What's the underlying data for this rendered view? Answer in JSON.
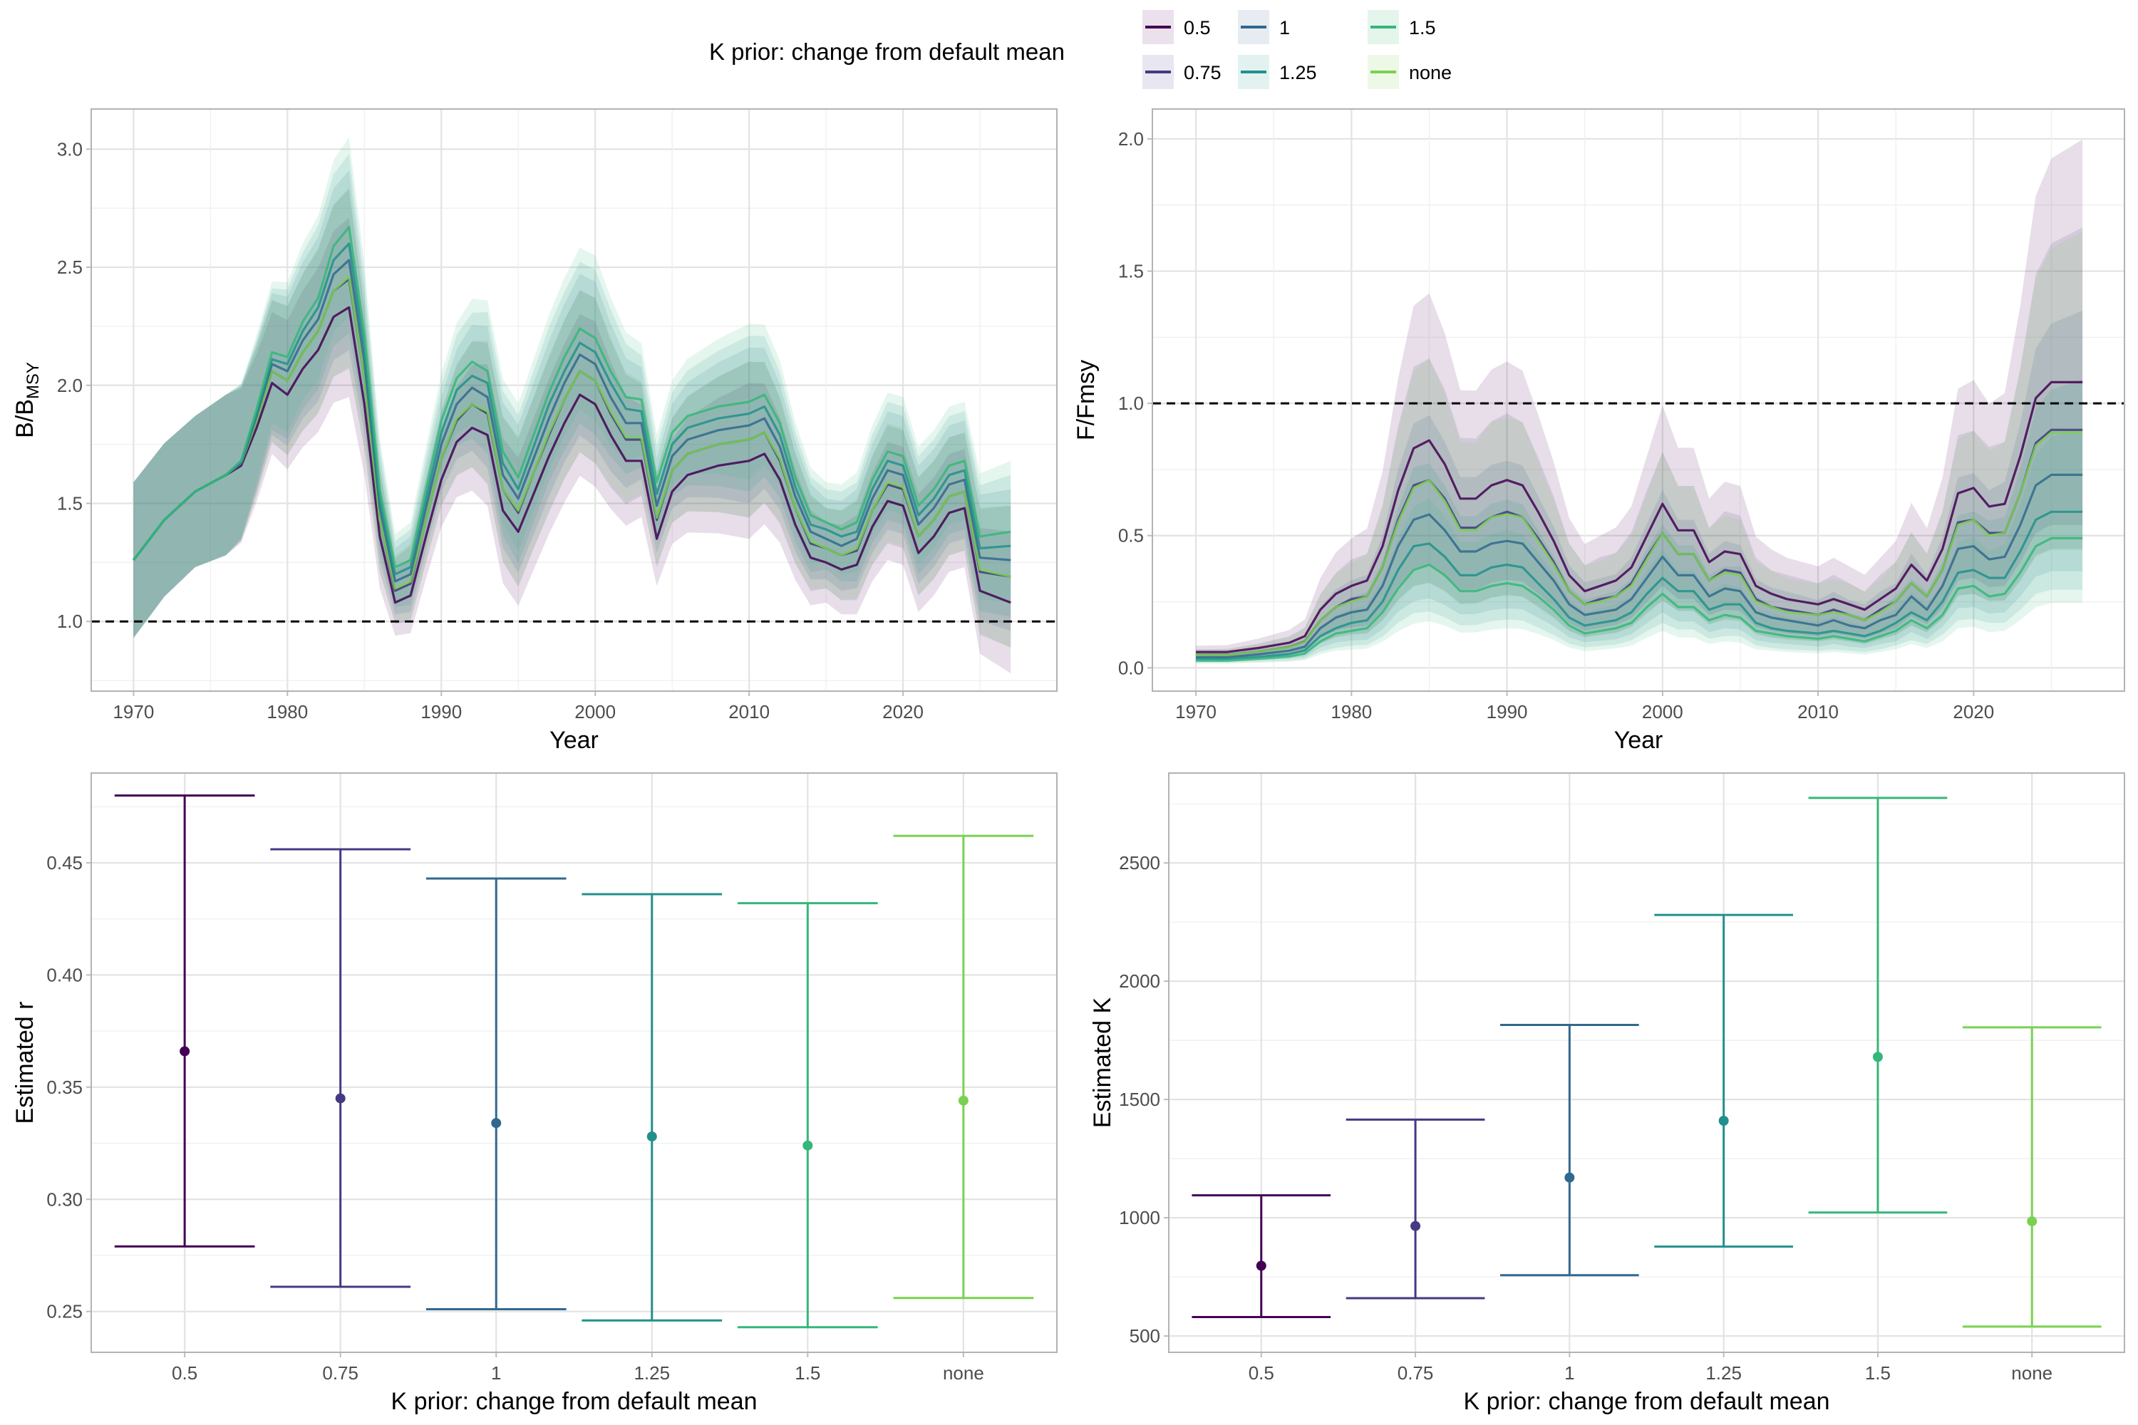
{
  "legend": {
    "title": "K prior: change from default mean",
    "items": [
      {
        "label": "0.5",
        "color": "#440154"
      },
      {
        "label": "0.75",
        "color": "#443A83"
      },
      {
        "label": "1",
        "color": "#31688E"
      },
      {
        "label": "1.25",
        "color": "#21908C"
      },
      {
        "label": "1.5",
        "color": "#35B779"
      },
      {
        "label": "none",
        "color": "#7AD151"
      }
    ]
  },
  "chart_data": [
    {
      "type": "line",
      "xlabel": "Year",
      "ylabel_main": "B/B",
      "ylabel_sub": "MSY",
      "xlim": [
        1967.25,
        2030
      ],
      "ylim": [
        0.705,
        3.17
      ],
      "xticks": [
        1970,
        1980,
        1990,
        2000,
        2010,
        2020
      ],
      "yticks": [
        "1.0",
        "1.5",
        "2.0",
        "2.5",
        "3.0"
      ],
      "reference_line": 1.0,
      "grid": true,
      "x": [
        1970,
        1972,
        1974,
        1976,
        1977,
        1978,
        1979,
        1980,
        1981,
        1982,
        1983,
        1984,
        1985,
        1986,
        1987,
        1988,
        1989,
        1990,
        1991,
        1992,
        1993,
        1994,
        1995,
        1996,
        1997,
        1998,
        1999,
        2000,
        2001,
        2002,
        2003,
        2004,
        2005,
        2006,
        2008,
        2010,
        2011,
        2012,
        2013,
        2014,
        2015,
        2016,
        2017,
        2018,
        2019,
        2020,
        2021,
        2022,
        2023,
        2024,
        2025,
        2027
      ],
      "series": [
        {
          "name": "0.5",
          "values": [
            1.26,
            1.43,
            1.55,
            1.62,
            1.66,
            1.82,
            2.01,
            1.96,
            2.07,
            2.15,
            2.29,
            2.33,
            1.92,
            1.36,
            1.08,
            1.11,
            1.36,
            1.6,
            1.76,
            1.82,
            1.79,
            1.47,
            1.38,
            1.54,
            1.7,
            1.84,
            1.96,
            1.92,
            1.79,
            1.68,
            1.68,
            1.35,
            1.55,
            1.62,
            1.66,
            1.68,
            1.71,
            1.6,
            1.41,
            1.27,
            1.25,
            1.22,
            1.24,
            1.4,
            1.51,
            1.49,
            1.29,
            1.36,
            1.46,
            1.48,
            1.13,
            1.08
          ]
        },
        {
          "name": "0.75",
          "values": [
            1.26,
            1.43,
            1.55,
            1.62,
            1.67,
            1.85,
            2.06,
            2.02,
            2.14,
            2.23,
            2.4,
            2.45,
            2.03,
            1.43,
            1.13,
            1.16,
            1.43,
            1.69,
            1.85,
            1.92,
            1.88,
            1.56,
            1.46,
            1.63,
            1.79,
            1.94,
            2.06,
            2.02,
            1.88,
            1.77,
            1.77,
            1.43,
            1.64,
            1.71,
            1.75,
            1.77,
            1.8,
            1.68,
            1.48,
            1.33,
            1.31,
            1.28,
            1.3,
            1.47,
            1.58,
            1.56,
            1.36,
            1.43,
            1.53,
            1.55,
            1.21,
            1.19
          ]
        },
        {
          "name": "1",
          "values": [
            1.26,
            1.43,
            1.55,
            1.62,
            1.67,
            1.87,
            2.09,
            2.06,
            2.19,
            2.28,
            2.47,
            2.53,
            2.1,
            1.48,
            1.17,
            1.2,
            1.48,
            1.75,
            1.92,
            1.99,
            1.95,
            1.62,
            1.52,
            1.69,
            1.86,
            2.01,
            2.13,
            2.09,
            1.95,
            1.84,
            1.84,
            1.49,
            1.7,
            1.77,
            1.81,
            1.83,
            1.86,
            1.74,
            1.53,
            1.38,
            1.35,
            1.32,
            1.35,
            1.52,
            1.64,
            1.62,
            1.41,
            1.48,
            1.58,
            1.6,
            1.27,
            1.26
          ]
        },
        {
          "name": "1.25",
          "values": [
            1.26,
            1.43,
            1.55,
            1.62,
            1.68,
            1.88,
            2.11,
            2.09,
            2.23,
            2.33,
            2.53,
            2.6,
            2.16,
            1.52,
            1.2,
            1.23,
            1.52,
            1.8,
            1.98,
            2.04,
            2.01,
            1.67,
            1.56,
            1.74,
            1.92,
            2.06,
            2.18,
            2.14,
            2.01,
            1.9,
            1.89,
            1.54,
            1.75,
            1.82,
            1.86,
            1.88,
            1.91,
            1.79,
            1.57,
            1.41,
            1.39,
            1.36,
            1.38,
            1.56,
            1.68,
            1.66,
            1.45,
            1.52,
            1.62,
            1.64,
            1.31,
            1.32
          ]
        },
        {
          "name": "1.5",
          "values": [
            1.26,
            1.43,
            1.55,
            1.62,
            1.68,
            1.9,
            2.14,
            2.12,
            2.27,
            2.37,
            2.59,
            2.67,
            2.22,
            1.56,
            1.23,
            1.26,
            1.56,
            1.85,
            2.03,
            2.1,
            2.06,
            1.72,
            1.61,
            1.79,
            1.97,
            2.12,
            2.24,
            2.2,
            2.06,
            1.95,
            1.94,
            1.59,
            1.8,
            1.87,
            1.91,
            1.93,
            1.96,
            1.84,
            1.61,
            1.45,
            1.42,
            1.39,
            1.42,
            1.6,
            1.72,
            1.7,
            1.49,
            1.56,
            1.66,
            1.68,
            1.36,
            1.38
          ]
        },
        {
          "name": "none",
          "values": [
            1.26,
            1.43,
            1.55,
            1.62,
            1.67,
            1.85,
            2.06,
            2.02,
            2.14,
            2.23,
            2.4,
            2.46,
            2.03,
            1.43,
            1.14,
            1.17,
            1.43,
            1.69,
            1.86,
            1.92,
            1.89,
            1.56,
            1.47,
            1.63,
            1.8,
            1.94,
            2.06,
            2.02,
            1.89,
            1.78,
            1.78,
            1.44,
            1.64,
            1.71,
            1.75,
            1.77,
            1.8,
            1.69,
            1.48,
            1.34,
            1.31,
            1.28,
            1.31,
            1.47,
            1.59,
            1.57,
            1.36,
            1.43,
            1.53,
            1.55,
            1.22,
            1.19
          ]
        }
      ],
      "interval_halfwidth": {
        "years": [
          1970,
          1974,
          1976,
          1979,
          1984,
          1987,
          1990,
          1993,
          2000,
          2004,
          2010,
          2015,
          2019,
          2024,
          2027
        ],
        "values": [
          0.33,
          0.32,
          0.34,
          0.3,
          0.38,
          0.14,
          0.2,
          0.3,
          0.35,
          0.2,
          0.33,
          0.17,
          0.25,
          0.25,
          0.3
        ]
      }
    },
    {
      "type": "line",
      "xlabel": "Year",
      "ylabel": "F/Fmsy",
      "xlim": [
        1967.2,
        2029.7
      ],
      "ylim": [
        -0.088,
        2.113
      ],
      "xticks": [
        1970,
        1980,
        1990,
        2000,
        2010,
        2020
      ],
      "yticks": [
        "0.0",
        "0.5",
        "1.0",
        "1.5",
        "2.0"
      ],
      "reference_line": 1.0,
      "grid": true,
      "x": [
        1970,
        1972,
        1974,
        1976,
        1977,
        1978,
        1979,
        1980,
        1981,
        1982,
        1983,
        1984,
        1985,
        1986,
        1987,
        1988,
        1989,
        1990,
        1991,
        1992,
        1993,
        1994,
        1995,
        1996,
        1997,
        1998,
        1999,
        2000,
        2001,
        2002,
        2003,
        2004,
        2005,
        2006,
        2007,
        2008,
        2010,
        2011,
        2012,
        2013,
        2014,
        2015,
        2016,
        2017,
        2018,
        2019,
        2020,
        2021,
        2022,
        2023,
        2024,
        2025,
        2027
      ],
      "series": [
        {
          "name": "0.5",
          "values": [
            0.06,
            0.06,
            0.075,
            0.095,
            0.12,
            0.22,
            0.28,
            0.31,
            0.33,
            0.46,
            0.67,
            0.83,
            0.86,
            0.77,
            0.64,
            0.64,
            0.69,
            0.71,
            0.69,
            0.59,
            0.48,
            0.35,
            0.29,
            0.31,
            0.33,
            0.38,
            0.5,
            0.62,
            0.52,
            0.52,
            0.4,
            0.44,
            0.43,
            0.31,
            0.28,
            0.26,
            0.24,
            0.26,
            0.24,
            0.22,
            0.26,
            0.3,
            0.39,
            0.33,
            0.45,
            0.66,
            0.68,
            0.61,
            0.62,
            0.8,
            1.02,
            1.08,
            1.08
          ]
        },
        {
          "name": "0.75",
          "values": [
            0.05,
            0.05,
            0.062,
            0.079,
            0.1,
            0.18,
            0.23,
            0.26,
            0.27,
            0.38,
            0.56,
            0.69,
            0.71,
            0.64,
            0.53,
            0.53,
            0.57,
            0.59,
            0.57,
            0.49,
            0.4,
            0.29,
            0.24,
            0.26,
            0.27,
            0.32,
            0.42,
            0.51,
            0.43,
            0.43,
            0.33,
            0.37,
            0.36,
            0.26,
            0.23,
            0.22,
            0.2,
            0.22,
            0.2,
            0.18,
            0.22,
            0.25,
            0.32,
            0.27,
            0.37,
            0.55,
            0.56,
            0.51,
            0.51,
            0.66,
            0.85,
            0.9,
            0.9
          ]
        },
        {
          "name": "1",
          "values": [
            0.04,
            0.04,
            0.051,
            0.065,
            0.08,
            0.15,
            0.19,
            0.21,
            0.22,
            0.31,
            0.46,
            0.56,
            0.58,
            0.52,
            0.44,
            0.44,
            0.47,
            0.48,
            0.47,
            0.4,
            0.33,
            0.24,
            0.2,
            0.21,
            0.22,
            0.26,
            0.34,
            0.42,
            0.35,
            0.35,
            0.27,
            0.3,
            0.29,
            0.21,
            0.19,
            0.18,
            0.16,
            0.18,
            0.16,
            0.15,
            0.18,
            0.2,
            0.27,
            0.22,
            0.31,
            0.45,
            0.46,
            0.41,
            0.42,
            0.54,
            0.69,
            0.73,
            0.73
          ]
        },
        {
          "name": "1.25",
          "values": [
            0.033,
            0.033,
            0.041,
            0.052,
            0.066,
            0.12,
            0.15,
            0.17,
            0.18,
            0.25,
            0.37,
            0.46,
            0.47,
            0.42,
            0.35,
            0.35,
            0.38,
            0.39,
            0.38,
            0.32,
            0.26,
            0.19,
            0.16,
            0.17,
            0.18,
            0.21,
            0.28,
            0.34,
            0.29,
            0.29,
            0.22,
            0.24,
            0.24,
            0.17,
            0.15,
            0.14,
            0.13,
            0.14,
            0.13,
            0.12,
            0.14,
            0.17,
            0.21,
            0.18,
            0.25,
            0.36,
            0.37,
            0.34,
            0.34,
            0.44,
            0.56,
            0.59,
            0.59
          ]
        },
        {
          "name": "1.5",
          "values": [
            0.027,
            0.027,
            0.034,
            0.043,
            0.054,
            0.1,
            0.13,
            0.14,
            0.15,
            0.21,
            0.3,
            0.37,
            0.39,
            0.35,
            0.29,
            0.29,
            0.31,
            0.32,
            0.31,
            0.27,
            0.22,
            0.16,
            0.13,
            0.14,
            0.15,
            0.17,
            0.23,
            0.28,
            0.23,
            0.23,
            0.18,
            0.2,
            0.19,
            0.14,
            0.13,
            0.12,
            0.11,
            0.12,
            0.11,
            0.1,
            0.12,
            0.14,
            0.18,
            0.15,
            0.2,
            0.3,
            0.31,
            0.27,
            0.28,
            0.36,
            0.46,
            0.49,
            0.49
          ]
        },
        {
          "name": "none",
          "values": [
            0.049,
            0.049,
            0.062,
            0.078,
            0.098,
            0.18,
            0.23,
            0.25,
            0.27,
            0.38,
            0.55,
            0.68,
            0.71,
            0.63,
            0.52,
            0.52,
            0.57,
            0.58,
            0.57,
            0.48,
            0.39,
            0.29,
            0.24,
            0.25,
            0.27,
            0.31,
            0.41,
            0.51,
            0.43,
            0.43,
            0.33,
            0.36,
            0.35,
            0.25,
            0.23,
            0.21,
            0.2,
            0.21,
            0.2,
            0.18,
            0.21,
            0.25,
            0.32,
            0.27,
            0.37,
            0.54,
            0.56,
            0.5,
            0.51,
            0.66,
            0.84,
            0.89,
            0.89
          ]
        }
      ],
      "interval_ratio": {
        "years": [
          1970,
          1984,
          2000,
          2020,
          2024,
          2027
        ],
        "lower": [
          0.6,
          0.45,
          0.5,
          0.5,
          0.5,
          0.5
        ],
        "upper": [
          1.4,
          1.65,
          1.6,
          1.6,
          1.75,
          1.85
        ]
      }
    },
    {
      "type": "errorbar",
      "xlabel": "K prior: change from default mean",
      "ylabel": "Estimated r",
      "ylim": [
        0.2318,
        0.49
      ],
      "yticks": [
        "0.25",
        "0.30",
        "0.35",
        "0.40",
        "0.45"
      ],
      "grid": true,
      "categories": [
        "0.5",
        "0.75",
        "1",
        "1.25",
        "1.5",
        "none"
      ],
      "estimate": [
        0.366,
        0.345,
        0.334,
        0.328,
        0.324,
        0.344
      ],
      "lower": [
        0.279,
        0.261,
        0.251,
        0.246,
        0.243,
        0.256
      ],
      "upper": [
        0.48,
        0.456,
        0.443,
        0.436,
        0.432,
        0.462
      ]
    },
    {
      "type": "errorbar",
      "xlabel": "K prior: change from default mean",
      "ylabel": "Estimated K",
      "ylim": [
        431,
        2880
      ],
      "yticks": [
        "500",
        "1000",
        "1500",
        "2000",
        "2500"
      ],
      "grid": true,
      "categories": [
        "0.5",
        "0.75",
        "1",
        "1.25",
        "1.5",
        "none"
      ],
      "estimate": [
        797,
        965,
        1170,
        1410,
        1680,
        985
      ],
      "lower": [
        580,
        660,
        757,
        878,
        1022,
        540
      ],
      "upper": [
        1095,
        1415,
        1815,
        2280,
        2775,
        1805
      ]
    }
  ]
}
